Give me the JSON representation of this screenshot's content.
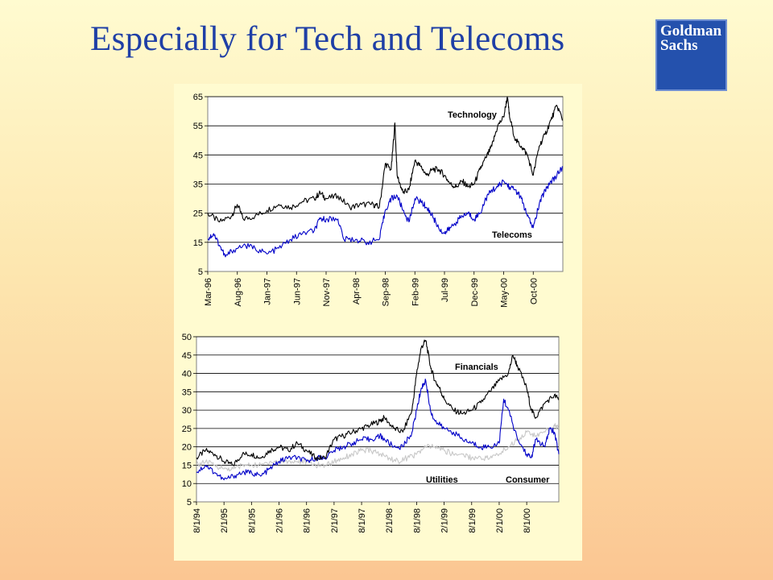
{
  "slide": {
    "title": "Especially for Tech and Telecoms",
    "logo_line1": "Goldman",
    "logo_line2": "Sachs",
    "colors": {
      "title": "#1f3fa6",
      "logo_bg": "#2451ad",
      "background_top": "#fffbd0",
      "background_bottom": "#fbc692"
    }
  },
  "chart_data": [
    {
      "type": "line",
      "title": "",
      "xlabel": "",
      "ylabel": "",
      "ylim": [
        5,
        65
      ],
      "yticks": [
        5,
        15,
        25,
        35,
        45,
        55,
        65
      ],
      "xticks": [
        "Mar-96",
        "Aug-96",
        "Jan-97",
        "Jun-97",
        "Nov-97",
        "Apr-98",
        "Sep-98",
        "Feb-99",
        "Jul-99",
        "Dec-99",
        "May-00",
        "Oct-00"
      ],
      "x_domain": [
        "1996-03",
        "2001-03"
      ],
      "grid": "horizontal",
      "series": [
        {
          "name": "Technology",
          "color": "#000000",
          "points": [
            [
              "1996-03",
              25
            ],
            [
              "1996-05",
              22
            ],
            [
              "1996-07",
              24
            ],
            [
              "1996-08",
              28
            ],
            [
              "1996-09",
              23
            ],
            [
              "1996-11",
              24
            ],
            [
              "1997-01",
              26
            ],
            [
              "1997-03",
              28
            ],
            [
              "1997-05",
              27
            ],
            [
              "1997-07",
              29
            ],
            [
              "1997-09",
              30
            ],
            [
              "1997-10",
              32
            ],
            [
              "1997-11",
              30
            ],
            [
              "1998-01",
              31
            ],
            [
              "1998-03",
              27
            ],
            [
              "1998-05",
              28
            ],
            [
              "1998-07",
              28
            ],
            [
              "1998-08",
              27
            ],
            [
              "1998-09",
              42
            ],
            [
              "1998-10",
              40
            ],
            [
              "1998-10-20",
              56
            ],
            [
              "1998-11",
              38
            ],
            [
              "1998-12",
              32
            ],
            [
              "1999-01",
              33
            ],
            [
              "1999-02",
              43
            ],
            [
              "1999-03",
              41
            ],
            [
              "1999-04",
              38
            ],
            [
              "1999-05",
              40
            ],
            [
              "1999-06",
              40
            ],
            [
              "1999-07",
              38
            ],
            [
              "1999-08",
              35
            ],
            [
              "1999-09",
              34
            ],
            [
              "1999-10",
              36
            ],
            [
              "1999-11",
              34
            ],
            [
              "1999-12",
              35
            ],
            [
              "2000-01",
              40
            ],
            [
              "2000-02",
              44
            ],
            [
              "2000-03",
              48
            ],
            [
              "2000-04",
              55
            ],
            [
              "2000-05",
              58
            ],
            [
              "2000-05-20",
              65
            ],
            [
              "2000-06",
              58
            ],
            [
              "2000-07",
              50
            ],
            [
              "2000-08",
              48
            ],
            [
              "2000-09",
              45
            ],
            [
              "2000-10",
              38
            ],
            [
              "2000-11",
              48
            ],
            [
              "2000-12",
              52
            ],
            [
              "2001-01",
              57
            ],
            [
              "2001-02",
              62
            ],
            [
              "2001-03",
              57
            ]
          ]
        },
        {
          "name": "Telecoms",
          "color": "#0000c8",
          "points": [
            [
              "1996-03",
              16
            ],
            [
              "1996-04",
              18
            ],
            [
              "1996-05",
              14
            ],
            [
              "1996-06",
              10
            ],
            [
              "1996-07",
              12
            ],
            [
              "1996-09",
              14
            ],
            [
              "1996-11",
              13
            ],
            [
              "1997-01",
              11
            ],
            [
              "1997-03",
              13
            ],
            [
              "1997-05",
              16
            ],
            [
              "1997-07",
              18
            ],
            [
              "1997-09",
              19
            ],
            [
              "1997-10",
              23
            ],
            [
              "1997-11",
              23
            ],
            [
              "1998-01",
              23
            ],
            [
              "1998-02",
              16
            ],
            [
              "1998-04",
              16
            ],
            [
              "1998-06",
              15
            ],
            [
              "1998-08",
              16
            ],
            [
              "1998-09",
              26
            ],
            [
              "1998-10",
              30
            ],
            [
              "1998-11",
              31
            ],
            [
              "1998-12",
              26
            ],
            [
              "1999-01",
              22
            ],
            [
              "1999-02",
              30
            ],
            [
              "1999-03",
              29
            ],
            [
              "1999-04",
              27
            ],
            [
              "1999-05",
              24
            ],
            [
              "1999-06",
              20
            ],
            [
              "1999-07",
              18
            ],
            [
              "1999-08",
              20
            ],
            [
              "1999-09",
              22
            ],
            [
              "1999-10",
              24
            ],
            [
              "1999-11",
              25
            ],
            [
              "1999-12",
              23
            ],
            [
              "2000-01",
              25
            ],
            [
              "2000-02",
              30
            ],
            [
              "2000-03",
              33
            ],
            [
              "2000-04",
              34
            ],
            [
              "2000-05",
              36
            ],
            [
              "2000-06",
              34
            ],
            [
              "2000-07",
              33
            ],
            [
              "2000-08",
              30
            ],
            [
              "2000-09",
              24
            ],
            [
              "2000-10",
              20
            ],
            [
              "2000-11",
              28
            ],
            [
              "2000-12",
              33
            ],
            [
              "2001-01",
              36
            ],
            [
              "2001-02",
              38
            ],
            [
              "2001-03",
              41
            ]
          ]
        }
      ]
    },
    {
      "type": "line",
      "title": "",
      "xlabel": "",
      "ylabel": "",
      "ylim": [
        5,
        50
      ],
      "yticks": [
        5,
        10,
        15,
        20,
        25,
        30,
        35,
        40,
        45,
        50
      ],
      "xticks": [
        "8/1/94",
        "2/1/95",
        "8/1/95",
        "2/1/96",
        "8/1/96",
        "2/1/97",
        "8/1/97",
        "2/1/98",
        "8/1/98",
        "2/1/99",
        "8/1/99",
        "2/1/00",
        "8/1/00"
      ],
      "x_domain": [
        "1994-08",
        "2001-03"
      ],
      "grid": "horizontal",
      "series": [
        {
          "name": "Financials",
          "color": "#000000",
          "points": [
            [
              "1994-08",
              17
            ],
            [
              "1994-10",
              19
            ],
            [
              "1994-12",
              18
            ],
            [
              "1995-02",
              16
            ],
            [
              "1995-04",
              15
            ],
            [
              "1995-06",
              18
            ],
            [
              "1995-08",
              18
            ],
            [
              "1995-10",
              17
            ],
            [
              "1995-12",
              19
            ],
            [
              "1996-02",
              20
            ],
            [
              "1996-04",
              19
            ],
            [
              "1996-06",
              21
            ],
            [
              "1996-08",
              19
            ],
            [
              "1996-10",
              17
            ],
            [
              "1996-12",
              17
            ],
            [
              "1997-02",
              22
            ],
            [
              "1997-04",
              23
            ],
            [
              "1997-06",
              24
            ],
            [
              "1997-08",
              25
            ],
            [
              "1997-10",
              26
            ],
            [
              "1997-12",
              27
            ],
            [
              "1998-01",
              28
            ],
            [
              "1998-03",
              25
            ],
            [
              "1998-05",
              24
            ],
            [
              "1998-07",
              30
            ],
            [
              "1998-08",
              40
            ],
            [
              "1998-09",
              47
            ],
            [
              "1998-10",
              49
            ],
            [
              "1998-11",
              42
            ],
            [
              "1998-12",
              38
            ],
            [
              "1999-01",
              36
            ],
            [
              "1999-02",
              33
            ],
            [
              "1999-04",
              30
            ],
            [
              "1999-06",
              29
            ],
            [
              "1999-08",
              30
            ],
            [
              "1999-10",
              32
            ],
            [
              "1999-12",
              35
            ],
            [
              "2000-02",
              38
            ],
            [
              "2000-04",
              40
            ],
            [
              "2000-05",
              45
            ],
            [
              "2000-06",
              42
            ],
            [
              "2000-08",
              36
            ],
            [
              "2000-09",
              30
            ],
            [
              "2000-10",
              28
            ],
            [
              "2000-12",
              32
            ],
            [
              "2001-02",
              34
            ],
            [
              "2001-03",
              33
            ]
          ]
        },
        {
          "name": "Consumer",
          "color": "#0000c8",
          "points": [
            [
              "1994-08",
              13
            ],
            [
              "1994-10",
              15
            ],
            [
              "1994-12",
              13
            ],
            [
              "1995-02",
              11
            ],
            [
              "1995-04",
              12
            ],
            [
              "1995-06",
              13
            ],
            [
              "1995-08",
              13
            ],
            [
              "1995-10",
              12
            ],
            [
              "1995-12",
              14
            ],
            [
              "1996-02",
              16
            ],
            [
              "1996-04",
              17
            ],
            [
              "1996-06",
              17
            ],
            [
              "1996-08",
              16
            ],
            [
              "1996-10",
              17
            ],
            [
              "1996-12",
              17
            ],
            [
              "1997-02",
              19
            ],
            [
              "1997-04",
              20
            ],
            [
              "1997-06",
              21
            ],
            [
              "1997-08",
              22
            ],
            [
              "1997-10",
              22
            ],
            [
              "1997-12",
              23
            ],
            [
              "1998-01",
              22
            ],
            [
              "1998-03",
              20
            ],
            [
              "1998-05",
              20
            ],
            [
              "1998-07",
              24
            ],
            [
              "1998-08",
              30
            ],
            [
              "1998-09",
              36
            ],
            [
              "1998-10",
              38
            ],
            [
              "1998-11",
              30
            ],
            [
              "1998-12",
              27
            ],
            [
              "1999-02",
              25
            ],
            [
              "1999-04",
              24
            ],
            [
              "1999-06",
              22
            ],
            [
              "1999-08",
              21
            ],
            [
              "1999-10",
              20
            ],
            [
              "1999-12",
              20
            ],
            [
              "2000-02",
              21
            ],
            [
              "2000-03",
              33
            ],
            [
              "2000-04",
              30
            ],
            [
              "2000-06",
              22
            ],
            [
              "2000-08",
              18
            ],
            [
              "2000-09",
              17
            ],
            [
              "2000-10",
              22
            ],
            [
              "2000-12",
              20
            ],
            [
              "2001-01",
              25
            ],
            [
              "2001-02",
              24
            ],
            [
              "2001-03",
              18
            ]
          ]
        },
        {
          "name": "Utilities",
          "color": "#c8c8c8",
          "points": [
            [
              "1994-08",
              15
            ],
            [
              "1994-10",
              16
            ],
            [
              "1994-12",
              15
            ],
            [
              "1995-02",
              14
            ],
            [
              "1995-04",
              14
            ],
            [
              "1995-06",
              15
            ],
            [
              "1995-08",
              15
            ],
            [
              "1995-10",
              15
            ],
            [
              "1995-12",
              16
            ],
            [
              "1996-02",
              16
            ],
            [
              "1996-04",
              16
            ],
            [
              "1996-06",
              16
            ],
            [
              "1996-08",
              16
            ],
            [
              "1996-10",
              15
            ],
            [
              "1996-12",
              15
            ],
            [
              "1997-02",
              16
            ],
            [
              "1997-04",
              17
            ],
            [
              "1997-06",
              18
            ],
            [
              "1997-08",
              19
            ],
            [
              "1997-10",
              19
            ],
            [
              "1997-12",
              18
            ],
            [
              "1998-02",
              17
            ],
            [
              "1998-04",
              16
            ],
            [
              "1998-06",
              17
            ],
            [
              "1998-08",
              18
            ],
            [
              "1998-10",
              20
            ],
            [
              "1998-12",
              20
            ],
            [
              "1999-02",
              19
            ],
            [
              "1999-04",
              18
            ],
            [
              "1999-06",
              18
            ],
            [
              "1999-08",
              17
            ],
            [
              "1999-10",
              17
            ],
            [
              "1999-12",
              17
            ],
            [
              "2000-02",
              18
            ],
            [
              "2000-04",
              20
            ],
            [
              "2000-06",
              22
            ],
            [
              "2000-08",
              24
            ],
            [
              "2000-10",
              23
            ],
            [
              "2000-12",
              24
            ],
            [
              "2001-02",
              26
            ],
            [
              "2001-03",
              25
            ]
          ]
        }
      ]
    }
  ]
}
